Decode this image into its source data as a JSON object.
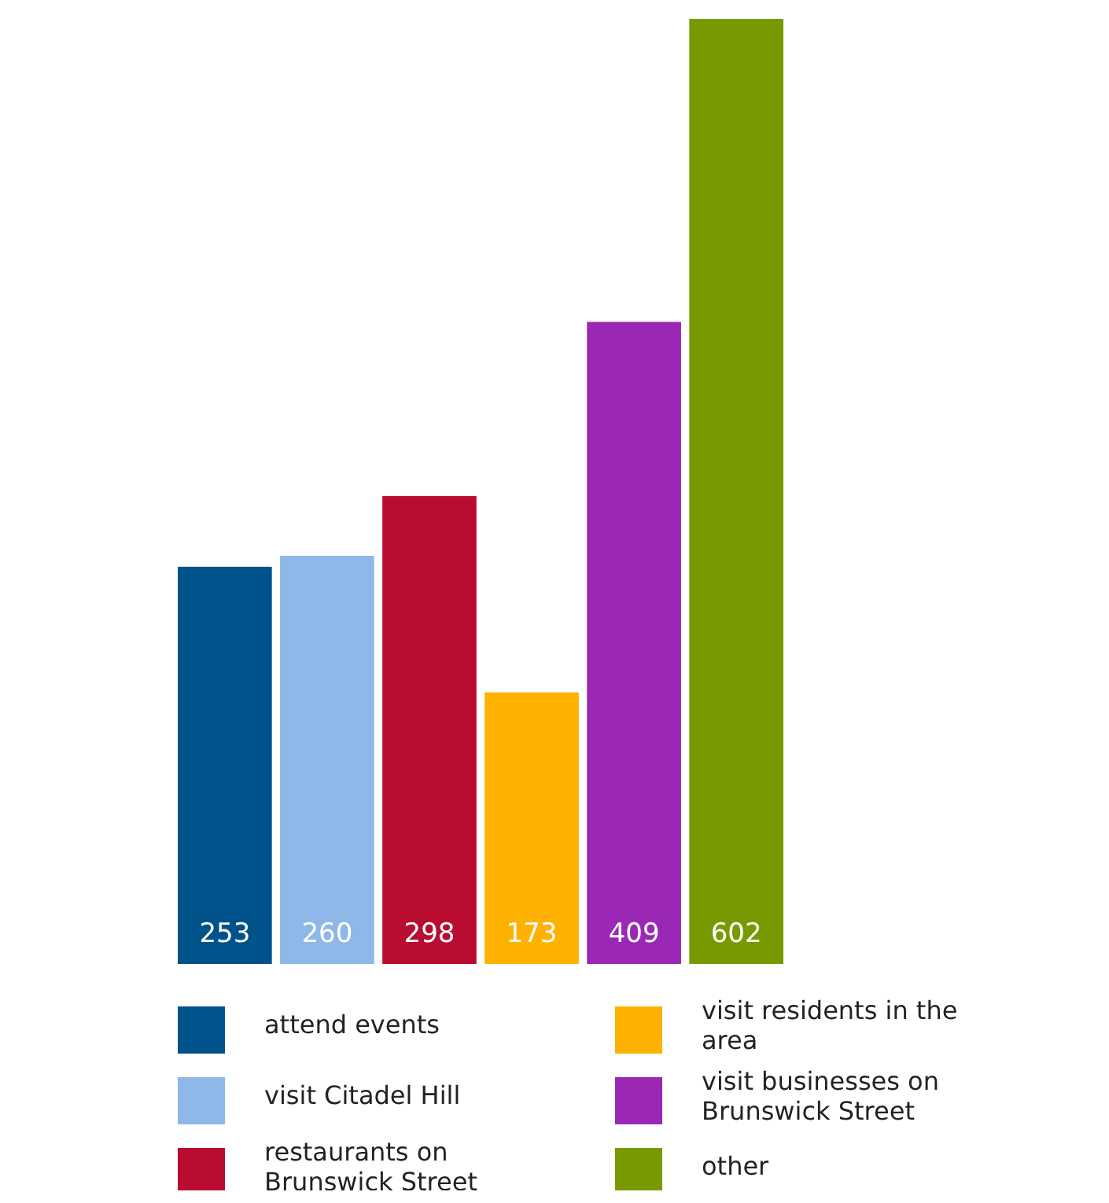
{
  "chart_data": {
    "type": "bar",
    "categories": [
      null
    ],
    "series": [
      {
        "name": "attend events",
        "color": "#00528a",
        "values": [
          253
        ]
      },
      {
        "name": "visit Citadel Hill",
        "color": "#8db8e8",
        "values": [
          260
        ]
      },
      {
        "name": "restaurants on Brunswick Street",
        "color": "#b80d30",
        "values": [
          298
        ]
      },
      {
        "name": "visit residents in the area",
        "color": "#ffb100",
        "values": [
          173
        ]
      },
      {
        "name": "visit businesses on Brunswick Street",
        "color": "#9b27b5",
        "values": [
          409
        ]
      },
      {
        "name": "other",
        "color": "#789a00",
        "values": [
          602
        ]
      }
    ],
    "data_labels": true,
    "legend": "bottom"
  }
}
